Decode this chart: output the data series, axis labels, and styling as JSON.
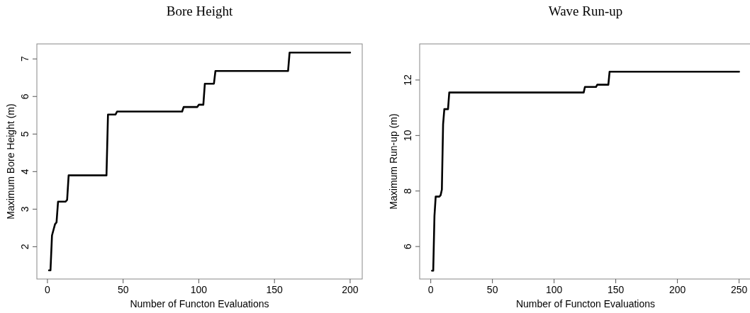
{
  "chart_data": [
    {
      "type": "line",
      "title": "Bore Height",
      "xlabel": "Number of Functon Evaluations",
      "ylabel": "Maximum Bore Height (m)",
      "xlim": [
        -7,
        208
      ],
      "ylim": [
        1.14,
        7.4
      ],
      "xticks": [
        0,
        50,
        100,
        150,
        200
      ],
      "yticks": [
        2,
        3,
        4,
        5,
        6,
        7
      ],
      "grid": false,
      "marker": "none",
      "line_style": "solid",
      "series": [
        {
          "color": "#000000",
          "x": [
            1,
            2,
            3,
            4,
            5,
            6,
            7,
            12,
            13,
            14,
            39,
            40,
            45,
            46,
            89,
            90,
            99,
            100,
            103,
            104,
            110,
            111,
            159,
            160,
            200
          ],
          "values": [
            1.37,
            1.37,
            2.3,
            2.45,
            2.6,
            2.65,
            3.2,
            3.2,
            3.25,
            3.9,
            3.9,
            5.52,
            5.52,
            5.6,
            5.6,
            5.72,
            5.72,
            5.78,
            5.78,
            6.34,
            6.34,
            6.68,
            6.68,
            7.17,
            7.17
          ]
        }
      ]
    },
    {
      "type": "line",
      "title": "Wave Run-up",
      "xlabel": "Number of Functon Evaluations",
      "ylabel": "Maximum Run-up (m)",
      "xlim": [
        -9,
        260
      ],
      "ylim": [
        4.83,
        13.3
      ],
      "xticks": [
        0,
        50,
        100,
        150,
        200,
        250
      ],
      "yticks": [
        6,
        8,
        10,
        12
      ],
      "grid": false,
      "marker": "none",
      "line_style": "solid",
      "series": [
        {
          "color": "#000000",
          "x": [
            1,
            2,
            3,
            4,
            7,
            8,
            9,
            10,
            11,
            14,
            15,
            124,
            125,
            134,
            135,
            144,
            145,
            250
          ],
          "values": [
            5.13,
            5.13,
            7.1,
            7.8,
            7.8,
            7.85,
            8.05,
            10.4,
            10.95,
            10.95,
            11.55,
            11.55,
            11.75,
            11.75,
            11.83,
            11.83,
            12.3,
            12.3
          ]
        }
      ]
    }
  ]
}
